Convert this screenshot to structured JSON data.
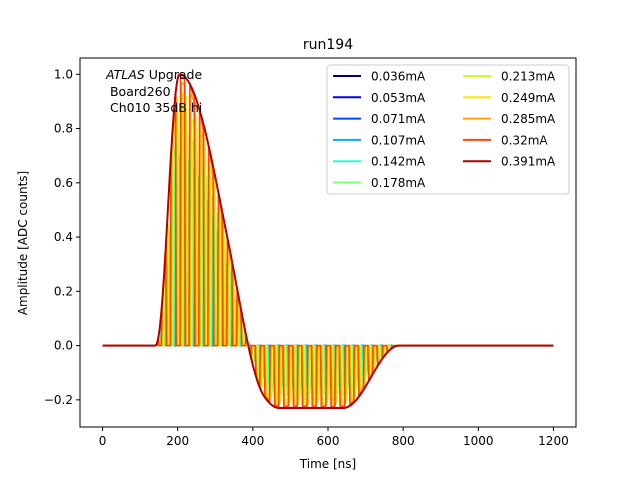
{
  "chart_data": {
    "type": "line",
    "title": "run194",
    "xlabel": "Time [ns]",
    "ylabel": "Amplitude [ADC counts]",
    "xlim": [
      -60,
      1260
    ],
    "ylim": [
      -0.3,
      1.06
    ],
    "xticks": [
      0,
      200,
      400,
      600,
      800,
      1000,
      1200
    ],
    "xtick_labels": [
      "0",
      "200",
      "400",
      "600",
      "800",
      "1000",
      "1200"
    ],
    "yticks": [
      -0.2,
      0.0,
      0.2,
      0.4,
      0.6,
      0.8,
      1.0
    ],
    "ytick_labels": [
      "−0.2",
      "0.0",
      "0.2",
      "0.4",
      "0.6",
      "0.8",
      "1.0"
    ],
    "annotation": {
      "italic_part": "ATLAS",
      "line1_rest": " Upgrade",
      "line2": " Board260",
      "line3": " Ch010 35dB hi"
    },
    "legend_location": "upper right",
    "legend_columns": 2,
    "series": [
      {
        "name": "0.036mA",
        "color": "#00007f",
        "peak": 0.33,
        "undershoot": -0.075,
        "gated": true
      },
      {
        "name": "0.053mA",
        "color": "#0000f1",
        "peak": 0.27,
        "undershoot": -0.065,
        "gated": true
      },
      {
        "name": "0.071mA",
        "color": "#004cff",
        "peak": 0.36,
        "undershoot": -0.085,
        "gated": true
      },
      {
        "name": "0.107mA",
        "color": "#00b0ff",
        "peak": 0.55,
        "undershoot": -0.12,
        "gated": true
      },
      {
        "name": "0.142mA",
        "color": "#29ffce",
        "peak": 0.7,
        "undershoot": -0.15,
        "gated": true
      },
      {
        "name": "0.178mA",
        "color": "#7dff7a",
        "peak": 0.8,
        "undershoot": -0.18,
        "gated": true
      },
      {
        "name": "0.213mA",
        "color": "#ceff29",
        "peak": 0.88,
        "undershoot": -0.2,
        "gated": true
      },
      {
        "name": "0.249mA",
        "color": "#ffe600",
        "peak": 0.93,
        "undershoot": -0.21,
        "gated": true
      },
      {
        "name": "0.285mA",
        "color": "#ffa400",
        "peak": 0.97,
        "undershoot": -0.22,
        "gated": true
      },
      {
        "name": "0.32mA",
        "color": "#ff4800",
        "peak": 0.99,
        "undershoot": -0.225,
        "gated": true
      },
      {
        "name": "0.391mA",
        "color": "#b20000",
        "peak": 1.0,
        "undershoot": -0.23,
        "gated": false
      }
    ],
    "waveform": {
      "x_start": 0,
      "x_end": 1200,
      "step": 2,
      "rise_start": 140,
      "peak_time": 205,
      "fall_end": 430,
      "flat_end": 640,
      "recover_end": 790,
      "gate_start": 150,
      "gate_end": 800,
      "gate_period": 25
    }
  }
}
